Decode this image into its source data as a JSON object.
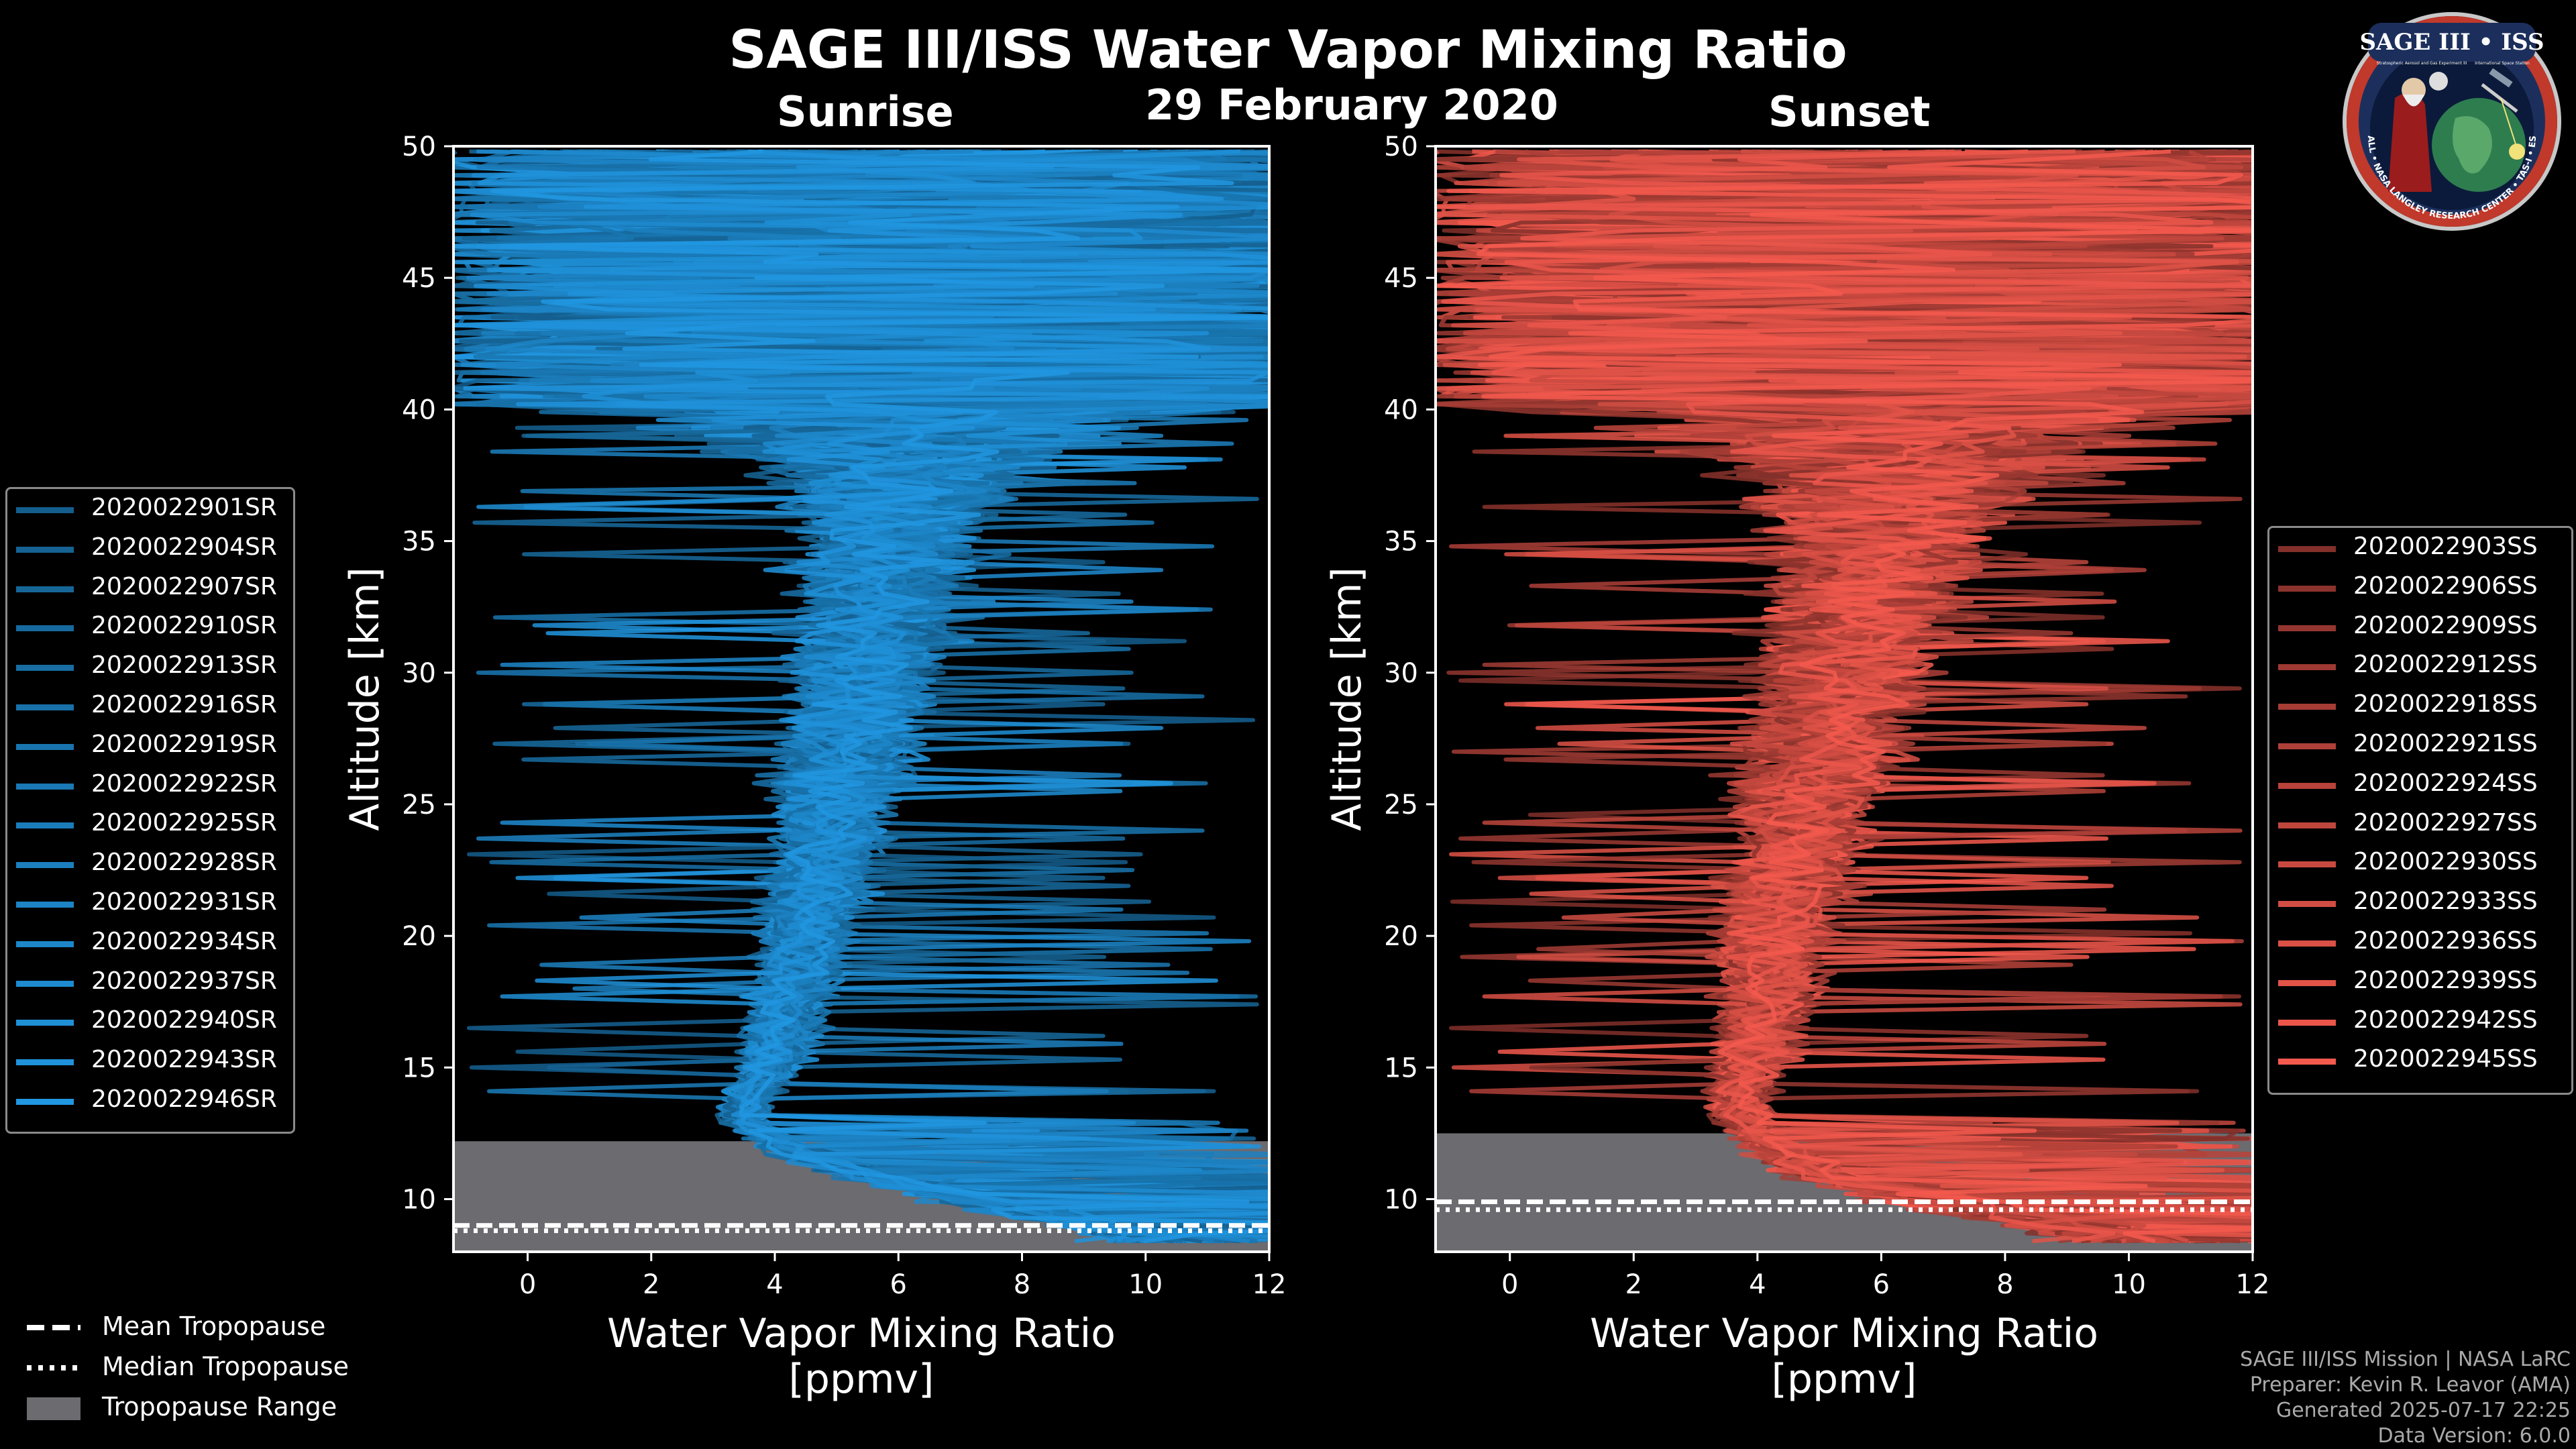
{
  "title": "SAGE III/ISS Water Vapor Mixing Ratio",
  "date": "29 February 2020",
  "subtitle_left": "Sunrise",
  "subtitle_right": "Sunset",
  "logo": {
    "top_text": "SAGE III • ISS",
    "sub_left": "Stratospheric Aerosol and Gas Experiment III",
    "sub_right": "International Space Station",
    "ring_text": "BALL • NASA LANGLEY RESEARCH CENTER • TAS-I • ESA"
  },
  "colors": {
    "sunrise": "#1f8fd6",
    "sunset": "#e8554a",
    "trop_fill": "#6b6b70"
  },
  "bottom_legend": {
    "mean": "Mean Tropopause",
    "median": "Median Tropopause",
    "range": "Tropopause Range"
  },
  "credits": [
    "SAGE III/ISS Mission | NASA LaRC",
    "Preparer: Kevin R. Leavor (AMA)",
    "Generated 2025-07-17 22:25",
    "Data Version: 6.0.0"
  ],
  "chart_data": [
    {
      "type": "line",
      "panel": "Sunrise",
      "xlabel": "Water Vapor Mixing Ratio\n[ppmv]",
      "ylabel": "Altitude [km]",
      "xlim": [
        -1.2,
        12
      ],
      "ylim": [
        8,
        50
      ],
      "xticks": [
        0,
        2,
        4,
        6,
        8,
        10,
        12
      ],
      "yticks": [
        10,
        15,
        20,
        25,
        30,
        35,
        40,
        45,
        50
      ],
      "legend_position": "left",
      "series_names": [
        "2020022901SR",
        "2020022904SR",
        "2020022907SR",
        "2020022910SR",
        "2020022913SR",
        "2020022916SR",
        "2020022919SR",
        "2020022922SR",
        "2020022925SR",
        "2020022928SR",
        "2020022931SR",
        "2020022934SR",
        "2020022937SR",
        "2020022940SR",
        "2020022943SR",
        "2020022946SR"
      ],
      "profile_shape": {
        "altitude_km": [
          8.5,
          10,
          11,
          12,
          13,
          14,
          15,
          17,
          20,
          25,
          30,
          35,
          38,
          40
        ],
        "median_ppmv": [
          10.5,
          7.5,
          5.5,
          4.2,
          3.5,
          3.6,
          3.9,
          4.2,
          4.5,
          5.0,
          5.5,
          5.8,
          6.0,
          6.2
        ],
        "spread_ppmv": [
          1.2,
          1.0,
          0.8,
          0.5,
          0.4,
          0.4,
          0.5,
          0.6,
          0.7,
          0.9,
          1.1,
          1.3,
          2.0,
          4.0
        ]
      },
      "tropopause": {
        "mean_km": 9.0,
        "median_km": 8.8,
        "range_km": [
          8,
          12.2
        ]
      }
    },
    {
      "type": "line",
      "panel": "Sunset",
      "xlabel": "Water Vapor Mixing Ratio\n[ppmv]",
      "ylabel": "Altitude [km]",
      "xlim": [
        -1.2,
        12
      ],
      "ylim": [
        8,
        50
      ],
      "xticks": [
        0,
        2,
        4,
        6,
        8,
        10,
        12
      ],
      "yticks": [
        10,
        15,
        20,
        25,
        30,
        35,
        40,
        45,
        50
      ],
      "legend_position": "right",
      "series_names": [
        "2020022903SS",
        "2020022906SS",
        "2020022909SS",
        "2020022912SS",
        "2020022918SS",
        "2020022921SS",
        "2020022924SS",
        "2020022927SS",
        "2020022930SS",
        "2020022933SS",
        "2020022936SS",
        "2020022939SS",
        "2020022942SS",
        "2020022945SS"
      ],
      "profile_shape": {
        "altitude_km": [
          8.5,
          10,
          11,
          12,
          13,
          14,
          15,
          17,
          20,
          25,
          30,
          35,
          38,
          40
        ],
        "median_ppmv": [
          10.5,
          7.0,
          5.0,
          4.3,
          3.8,
          3.7,
          3.8,
          4.1,
          4.3,
          4.8,
          5.4,
          5.9,
          6.2,
          6.5
        ],
        "spread_ppmv": [
          1.5,
          1.2,
          0.8,
          0.6,
          0.5,
          0.5,
          0.6,
          0.7,
          0.9,
          1.1,
          1.3,
          1.6,
          2.5,
          4.5
        ]
      },
      "tropopause": {
        "mean_km": 9.9,
        "median_km": 9.6,
        "range_km": [
          8,
          12.5
        ]
      }
    }
  ]
}
